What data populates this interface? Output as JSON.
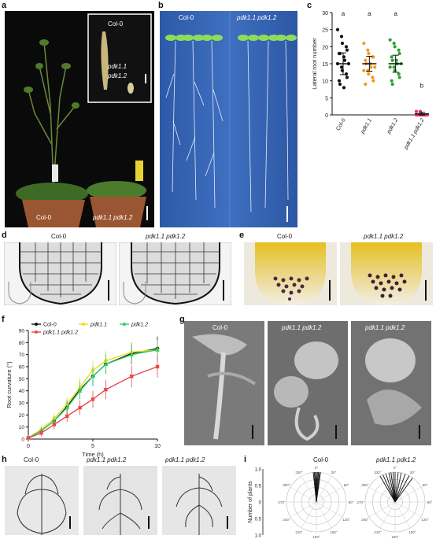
{
  "labels": {
    "a": "a",
    "b": "b",
    "c": "c",
    "d": "d",
    "e": "e",
    "f": "f",
    "g": "g",
    "h": "h",
    "i": "i"
  },
  "panel_a": {
    "inset_top": "Col-0",
    "inset_mid1": "pdk1.1",
    "inset_mid2": "pdk1.2",
    "col0": "Col-0",
    "mutant": "pdk1.1 pdk1.2"
  },
  "panel_b": {
    "col0": "Col-0",
    "mutant": "pdk1.1 pdk1.2"
  },
  "panel_d": {
    "col0": "Col-0",
    "mutant": "pdk1.1 pdk1.2"
  },
  "panel_e": {
    "col0": "Col-0",
    "mutant": "pdk1.1 pdk1.2"
  },
  "panel_g": {
    "col0": "Col-0",
    "mutant1": "pdk1.1 pdk1.2",
    "mutant2": "pdk1.1 pdk1.2"
  },
  "panel_h": {
    "col0": "Col-0",
    "mutant1": "pdk1.1 pdk1.2",
    "mutant2": "pdk1.1 pdk1.2"
  },
  "panel_i": {
    "col0": "Col-0",
    "mutant": "pdk1.1 pdk1.2",
    "ylabel": "Number of plants",
    "yticks": [
      "1.0",
      "0.5",
      "0",
      "0.5",
      "1.0"
    ],
    "angles": [
      "0°",
      "30°",
      "60°",
      "90°",
      "120°",
      "150°",
      "180°",
      "210°",
      "240°",
      "270°",
      "300°",
      "330°"
    ]
  },
  "chart_data": [
    {
      "type": "scatter",
      "panel": "c",
      "ylabel": "Lateral root number",
      "ylim": [
        0,
        30
      ],
      "yticks": [
        "0",
        "5",
        "10",
        "15",
        "20",
        "25",
        "30"
      ],
      "categories": [
        "Col-0",
        "pdk1.1",
        "pdk1.2",
        "pdk1.1 pdk1.2"
      ],
      "significance": [
        "a",
        "a",
        "a",
        "b"
      ],
      "colors": [
        "#111111",
        "#f39a1e",
        "#2ca02c",
        "#e0307a"
      ],
      "means": [
        15,
        15,
        15,
        0.3
      ],
      "sd": [
        3.2,
        2.2,
        2.5,
        0.5
      ],
      "points": [
        [
          25,
          23,
          21,
          20,
          19,
          18,
          18,
          17,
          16,
          15,
          15,
          14,
          13,
          12,
          11,
          10,
          9,
          8
        ],
        [
          21,
          19,
          18,
          17,
          17,
          16,
          15,
          15,
          14,
          14,
          13,
          13,
          12,
          11,
          10,
          9
        ],
        [
          22,
          21,
          20,
          19,
          18,
          17,
          16,
          16,
          15,
          15,
          14,
          14,
          13,
          12,
          11,
          10,
          9
        ],
        [
          1,
          1,
          0,
          0,
          0,
          0,
          0,
          0,
          0,
          0,
          0,
          0,
          0,
          0
        ]
      ]
    },
    {
      "type": "line",
      "panel": "f",
      "xlabel": "Time (h)",
      "ylabel": "Root curvature (°)",
      "xlim": [
        0,
        10
      ],
      "ylim": [
        0,
        90
      ],
      "xticks": [
        "0",
        "5",
        "10"
      ],
      "yticks": [
        "0",
        "10",
        "20",
        "30",
        "40",
        "50",
        "60",
        "70",
        "80",
        "90"
      ],
      "x": [
        0,
        1,
        2,
        3,
        4,
        5,
        6,
        8,
        10
      ],
      "series": [
        {
          "name": "Col-0",
          "color": "#111111",
          "marker": "circle",
          "values": [
            1,
            7,
            15,
            27,
            41,
            52,
            62,
            71,
            75
          ],
          "err": [
            2,
            3,
            4,
            6,
            8,
            8,
            8,
            9,
            10
          ]
        },
        {
          "name": "pdk1.1",
          "color": "#e8e010",
          "marker": "diamond",
          "values": [
            1,
            8,
            17,
            29,
            43,
            57,
            65,
            72,
            74
          ],
          "err": [
            2,
            3,
            4,
            6,
            8,
            8,
            8,
            8,
            8
          ]
        },
        {
          "name": "pdk1.2",
          "color": "#2ecc71",
          "marker": "triangle",
          "values": [
            1,
            7,
            15,
            26,
            40,
            52,
            62,
            70,
            74
          ],
          "err": [
            2,
            3,
            4,
            6,
            7,
            8,
            8,
            8,
            8
          ]
        },
        {
          "name": "pdk1.1 pdk1.2",
          "color": "#e84a4a",
          "marker": "square",
          "values": [
            1,
            5,
            12,
            19,
            26,
            33,
            41,
            52,
            60
          ],
          "err": [
            2,
            3,
            4,
            5,
            6,
            7,
            8,
            9,
            9
          ]
        }
      ]
    }
  ]
}
